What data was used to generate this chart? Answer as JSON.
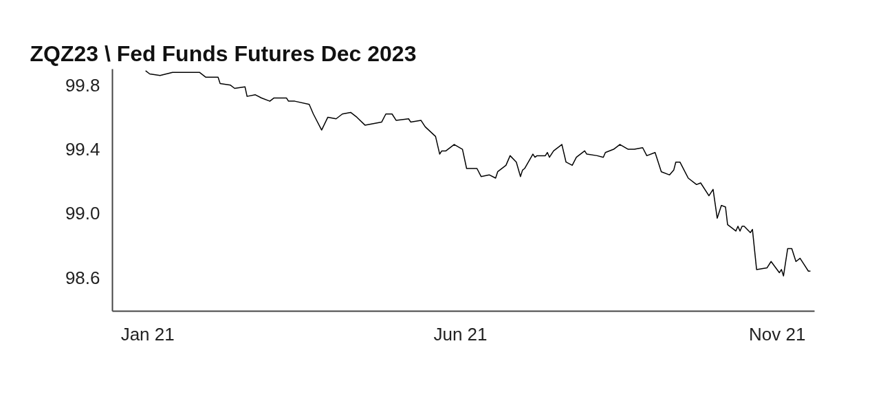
{
  "chart_data": {
    "type": "line",
    "title": "ZQZ23 \\ Fed Funds Futures Dec 2023",
    "x": [
      "2020-12-31",
      "2021-01-02",
      "2021-01-07",
      "2021-01-13",
      "2021-01-26",
      "2021-01-29",
      "2021-02-04",
      "2021-02-05",
      "2021-02-10",
      "2021-02-12",
      "2021-02-17",
      "2021-02-18",
      "2021-02-22",
      "2021-02-25",
      "2021-03-01",
      "2021-03-03",
      "2021-03-09",
      "2021-03-10",
      "2021-03-13",
      "2021-03-20",
      "2021-03-22",
      "2021-03-26",
      "2021-03-29",
      "2021-04-02",
      "2021-04-05",
      "2021-04-09",
      "2021-04-12",
      "2021-04-16",
      "2021-04-24",
      "2021-04-26",
      "2021-04-29",
      "2021-05-01",
      "2021-05-07",
      "2021-05-08",
      "2021-05-13",
      "2021-05-15",
      "2021-05-20",
      "2021-05-22",
      "2021-05-23",
      "2021-05-25",
      "2021-05-29",
      "2021-06-02",
      "2021-06-04",
      "2021-06-09",
      "2021-06-11",
      "2021-06-15",
      "2021-06-18",
      "2021-06-19",
      "2021-06-23",
      "2021-06-25",
      "2021-06-28",
      "2021-06-30",
      "2021-07-01",
      "2021-07-02",
      "2021-07-06",
      "2021-07-07",
      "2021-07-08",
      "2021-07-12",
      "2021-07-13",
      "2021-07-14",
      "2021-07-16",
      "2021-07-20",
      "2021-07-22",
      "2021-07-25",
      "2021-07-27",
      "2021-07-31",
      "2021-08-01",
      "2021-08-06",
      "2021-08-09",
      "2021-08-10",
      "2021-08-14",
      "2021-08-17",
      "2021-08-21",
      "2021-08-24",
      "2021-08-28",
      "2021-08-30",
      "2021-09-03",
      "2021-09-06",
      "2021-09-10",
      "2021-09-12",
      "2021-09-13",
      "2021-09-15",
      "2021-09-19",
      "2021-09-23",
      "2021-09-25",
      "2021-09-29",
      "2021-10-01",
      "2021-10-03",
      "2021-10-05",
      "2021-10-07",
      "2021-10-08",
      "2021-10-12",
      "2021-10-13",
      "2021-10-14",
      "2021-10-15",
      "2021-10-16",
      "2021-10-19",
      "2021-10-20",
      "2021-10-22",
      "2021-10-27",
      "2021-10-29",
      "2021-11-02",
      "2021-11-03",
      "2021-11-04",
      "2021-11-06",
      "2021-11-08",
      "2021-11-10",
      "2021-11-12",
      "2021-11-14",
      "2021-11-16",
      "2021-11-17"
    ],
    "series": [
      {
        "color": "#000000",
        "values": [
          99.89,
          99.87,
          99.86,
          99.88,
          99.88,
          99.85,
          99.85,
          99.81,
          99.8,
          99.78,
          99.79,
          99.73,
          99.74,
          99.72,
          99.7,
          99.72,
          99.72,
          99.7,
          99.7,
          99.68,
          99.62,
          99.52,
          99.6,
          99.59,
          99.62,
          99.63,
          99.6,
          99.55,
          99.57,
          99.62,
          99.62,
          99.58,
          99.59,
          99.57,
          99.58,
          99.54,
          99.48,
          99.37,
          99.39,
          99.39,
          99.43,
          99.4,
          99.28,
          99.28,
          99.23,
          99.24,
          99.22,
          99.26,
          99.3,
          99.36,
          99.32,
          99.23,
          99.27,
          99.28,
          99.37,
          99.35,
          99.36,
          99.36,
          99.38,
          99.35,
          99.39,
          99.43,
          99.32,
          99.3,
          99.35,
          99.39,
          99.37,
          99.36,
          99.35,
          99.38,
          99.4,
          99.43,
          99.4,
          99.4,
          99.41,
          99.36,
          99.38,
          99.26,
          99.24,
          99.27,
          99.32,
          99.32,
          99.22,
          99.18,
          99.19,
          99.11,
          99.15,
          98.97,
          99.05,
          99.04,
          98.93,
          98.89,
          98.92,
          98.89,
          98.92,
          98.92,
          98.88,
          98.9,
          98.65,
          98.66,
          98.7,
          98.63,
          98.65,
          98.61,
          98.78,
          98.78,
          98.7,
          98.72,
          98.68,
          98.64,
          98.64
        ]
      }
    ],
    "xlim": [
      "2020-12-15",
      "2021-11-19"
    ],
    "xticks": [
      {
        "value": "2021-01-01",
        "label": "Jan 21"
      },
      {
        "value": "2021-06-01",
        "label": "Jun 21"
      },
      {
        "value": "2021-11-01",
        "label": "Nov 21"
      }
    ],
    "ylim": [
      98.39,
      99.9
    ],
    "yticks": [
      98.6,
      {
        "value": 99.0,
        "label": "99.0"
      },
      99.4,
      99.8
    ],
    "grid": false,
    "marker": "none",
    "line_style": "solid"
  }
}
